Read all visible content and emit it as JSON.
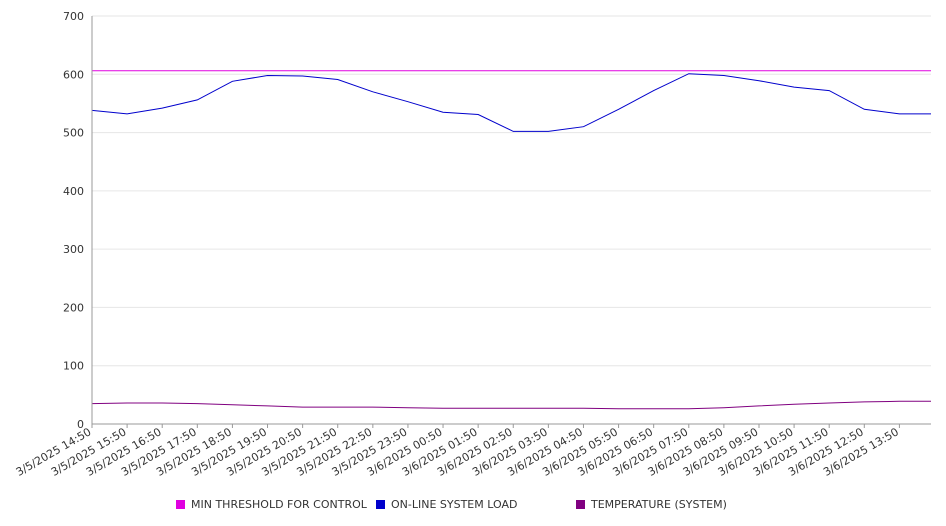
{
  "chart_data": {
    "type": "line",
    "ylim": [
      0,
      700
    ],
    "yticks": [
      0,
      100,
      200,
      300,
      400,
      500,
      600,
      700
    ],
    "grid": true,
    "legend_position": "bottom",
    "x_tick_labels": [
      "3/5/2025 14:50",
      "3/5/2025 15:50",
      "3/5/2025 16:50",
      "3/5/2025 17:50",
      "3/5/2025 18:50",
      "3/5/2025 19:50",
      "3/5/2025 20:50",
      "3/5/2025 21:50",
      "3/5/2025 22:50",
      "3/5/2025 23:50",
      "3/6/2025 00:50",
      "3/6/2025 01:50",
      "3/6/2025 02:50",
      "3/6/2025 03:50",
      "3/6/2025 04:50",
      "3/6/2025 05:50",
      "3/6/2025 06:50",
      "3/6/2025 07:50",
      "3/6/2025 08:50",
      "3/6/2025 09:50",
      "3/6/2025 10:50",
      "3/6/2025 11:50",
      "3/6/2025 12:50",
      "3/6/2025 13:50"
    ],
    "series": [
      {
        "name": "MIN THRESHOLD FOR CONTROL",
        "color": "#e000e0",
        "values": [
          606,
          606,
          606,
          606,
          606,
          606,
          606,
          606,
          606,
          606,
          606,
          606,
          606,
          606,
          606,
          606,
          606,
          606,
          606,
          606,
          606,
          606,
          606,
          606
        ]
      },
      {
        "name": "ON-LINE SYSTEM LOAD",
        "color": "#0000cc",
        "values": [
          538,
          532,
          542,
          556,
          588,
          598,
          597,
          591,
          570,
          553,
          535,
          531,
          502,
          502,
          510,
          540,
          572,
          601,
          598,
          589,
          578,
          572,
          540,
          532
        ]
      },
      {
        "name": "TEMPERATURE (SYSTEM)",
        "color": "#800080",
        "values": [
          35,
          36,
          36,
          35,
          33,
          31,
          29,
          29,
          29,
          28,
          27,
          27,
          27,
          27,
          27,
          26,
          26,
          26,
          28,
          31,
          34,
          36,
          38,
          39
        ]
      }
    ]
  }
}
